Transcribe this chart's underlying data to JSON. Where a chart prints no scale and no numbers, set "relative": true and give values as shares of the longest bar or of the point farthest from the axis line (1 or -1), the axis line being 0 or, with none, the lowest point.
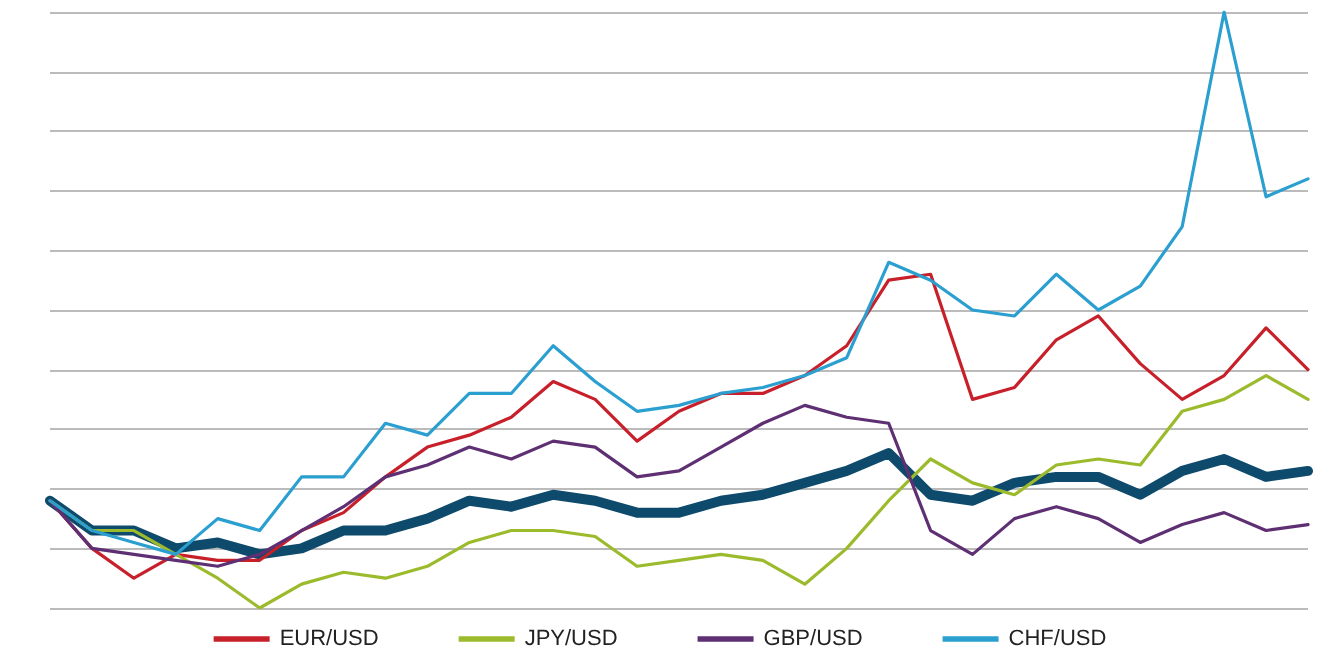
{
  "chart_data": {
    "type": "line",
    "relative": true,
    "categories": [
      null,
      null,
      null,
      null,
      null,
      null,
      null,
      null,
      null,
      null,
      null,
      null,
      null,
      null,
      null,
      null,
      null,
      null,
      null,
      null,
      null,
      null,
      null,
      null,
      null,
      null,
      null,
      null,
      null,
      null,
      null
    ],
    "grid": "y",
    "legend": "bottom",
    "marker": "none",
    "line_style": "solid",
    "series": [
      {
        "color": "#0d4a6b",
        "values": [
          0.18,
          0.13,
          0.13,
          0.1,
          0.11,
          0.09,
          0.1,
          0.13,
          0.13,
          0.15,
          0.18,
          0.17,
          0.19,
          0.18,
          0.16,
          0.16,
          0.18,
          0.19,
          0.21,
          0.23,
          0.26,
          0.19,
          0.18,
          0.21,
          0.22,
          0.22,
          0.19,
          0.23,
          0.25,
          0.22,
          0.23
        ]
      },
      {
        "name": "EUR/USD",
        "color": "#c8202a",
        "values": [
          0.18,
          0.1,
          0.05,
          0.09,
          0.08,
          0.08,
          0.13,
          0.16,
          0.22,
          0.27,
          0.29,
          0.32,
          0.38,
          0.35,
          0.28,
          0.33,
          0.36,
          0.36,
          0.39,
          0.44,
          0.55,
          0.56,
          0.35,
          0.37,
          0.45,
          0.49,
          0.41,
          0.35,
          0.39,
          0.47,
          0.4
        ]
      },
      {
        "name": "JPY/USD",
        "color": "#9cbb2c",
        "values": [
          0.18,
          0.13,
          0.13,
          0.09,
          0.05,
          0,
          0.04,
          0.06,
          0.05,
          0.07,
          0.11,
          0.13,
          0.13,
          0.12,
          0.07,
          0.08,
          0.09,
          0.08,
          0.04,
          0.1,
          0.18,
          0.25,
          0.21,
          0.19,
          0.24,
          0.25,
          0.24,
          0.33,
          0.35,
          0.39,
          0.35
        ]
      },
      {
        "name": "GBP/USD",
        "color": "#5e2f73",
        "values": [
          0.18,
          0.1,
          0.09,
          0.08,
          0.07,
          0.09,
          0.13,
          0.17,
          0.22,
          0.24,
          0.27,
          0.25,
          0.28,
          0.27,
          0.22,
          0.23,
          0.27,
          0.31,
          0.34,
          0.32,
          0.31,
          0.13,
          0.09,
          0.15,
          0.17,
          0.15,
          0.11,
          0.14,
          0.16,
          0.13,
          0.14
        ]
      },
      {
        "name": "CHF/USD",
        "color": "#2a9fd0",
        "values": [
          0.18,
          0.13,
          0.11,
          0.09,
          0.15,
          0.13,
          0.22,
          0.22,
          0.31,
          0.29,
          0.36,
          0.36,
          0.44,
          0.38,
          0.33,
          0.34,
          0.36,
          0.37,
          0.39,
          0.42,
          0.58,
          0.55,
          0.5,
          0.49,
          0.56,
          0.5,
          0.54,
          0.64,
          1,
          0.69,
          0.72
        ]
      }
    ]
  }
}
